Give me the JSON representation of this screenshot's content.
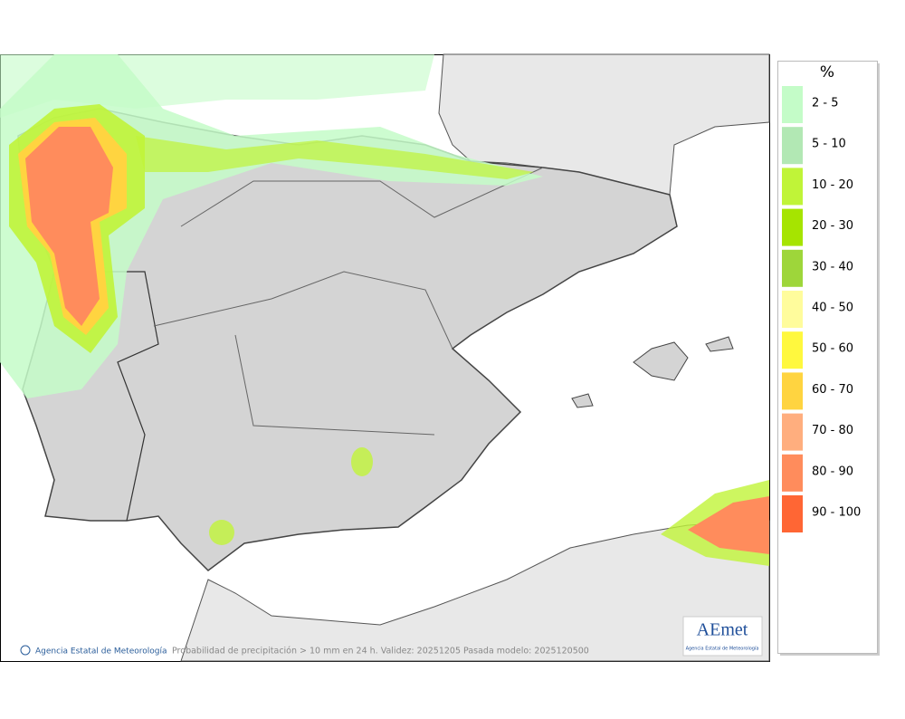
{
  "legend": {
    "title": "%",
    "items": [
      {
        "label": "2 - 5",
        "color": "#c4fcc8"
      },
      {
        "label": "5 - 10",
        "color": "#b2e8b4"
      },
      {
        "label": "10 - 20",
        "color": "#c0f438"
      },
      {
        "label": "20 - 30",
        "color": "#a6e400"
      },
      {
        "label": "30 - 40",
        "color": "#9ed63a"
      },
      {
        "label": "40 - 50",
        "color": "#fffc9c"
      },
      {
        "label": "50 - 60",
        "color": "#fff83e"
      },
      {
        "label": "60 - 70",
        "color": "#ffd440"
      },
      {
        "label": "70 - 80",
        "color": "#ffae7e"
      },
      {
        "label": "80 - 90",
        "color": "#ff8c5c"
      },
      {
        "label": "90 - 100",
        "color": "#ff6634"
      }
    ]
  },
  "footer": {
    "credit": "Agencia Estatal de Meteorología",
    "caption": "Probabilidad de precipitación > 10 mm en 24 h. Validez: 20251205 Pasada modelo: 2025120500"
  },
  "logo": {
    "name": "AEmet",
    "subtitle": "Agencia Estatal de Meteorología"
  }
}
